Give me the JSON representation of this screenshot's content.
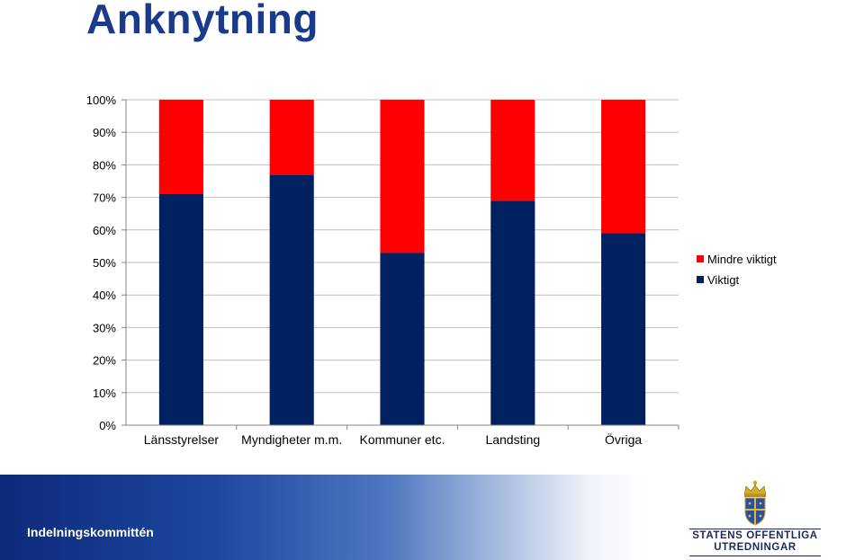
{
  "title": "Anknytning",
  "chart_data": {
    "type": "bar",
    "stacked": true,
    "percent": true,
    "categories": [
      "Länsstyrelser",
      "Myndigheter m.m.",
      "Kommuner etc.",
      "Landsting",
      "Övriga"
    ],
    "series": [
      {
        "name": "Viktigt",
        "color": "#002060",
        "values": [
          71,
          77,
          53,
          69,
          59
        ]
      },
      {
        "name": "Mindre viktigt",
        "color": "#ff0000",
        "values": [
          29,
          23,
          47,
          31,
          41
        ]
      }
    ],
    "ylim": [
      0,
      100
    ],
    "yticks": [
      "0%",
      "10%",
      "20%",
      "30%",
      "40%",
      "50%",
      "60%",
      "70%",
      "80%",
      "90%",
      "100%"
    ],
    "grid": true,
    "legend": "right"
  },
  "footer": {
    "label": "Indelningskommittén",
    "logo_line1": "STATENS OFFENTLIGA",
    "logo_line2": "UTREDNINGAR",
    "logo_icon": "crown-shield-icon"
  }
}
